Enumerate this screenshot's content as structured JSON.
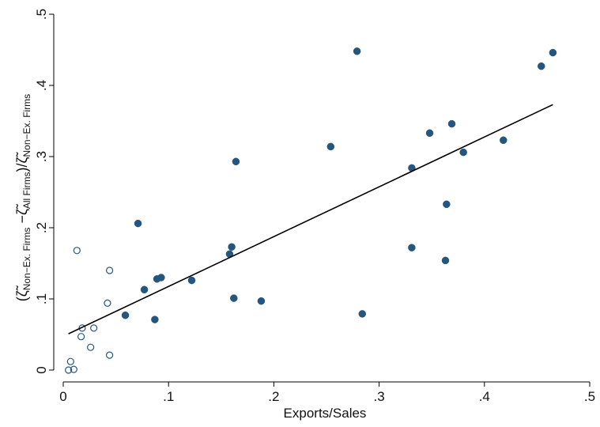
{
  "chart_data": {
    "type": "scatter",
    "xlabel": "Exports/Sales",
    "ylabel": [
      {
        "text": "(ζ̃",
        "sub": false
      },
      {
        "text": "Non−Ex. Firms",
        "sub": true
      },
      {
        "text": " −ζ̃",
        "sub": false
      },
      {
        "text": "All Firms",
        "sub": true
      },
      {
        "text": ")/ζ̃",
        "sub": false
      },
      {
        "text": "Non−Ex. Firms",
        "sub": true
      }
    ],
    "xlim": [
      0,
      0.5
    ],
    "ylim": [
      0,
      0.5
    ],
    "xticks": [
      0,
      {
        "value": 0.1,
        "label": ".1"
      },
      {
        "value": 0.2,
        "label": ".2"
      },
      {
        "value": 0.3,
        "label": ".3"
      },
      {
        "value": 0.4,
        "label": ".4"
      },
      {
        "value": 0.5,
        "label": ".5"
      }
    ],
    "yticks": [
      0,
      {
        "value": 0.1,
        "label": ".1"
      },
      {
        "value": 0.2,
        "label": ".2"
      },
      {
        "value": 0.3,
        "label": ".3"
      },
      {
        "value": 0.4,
        "label": ".4"
      },
      {
        "value": 0.5,
        "label": ".5"
      }
    ],
    "grid": false,
    "series": [
      {
        "color": "#24567e",
        "filled": true,
        "x": [
          0.071,
          0.279,
          0.465,
          0.454,
          0.348,
          0.369,
          0.254,
          0.164,
          0.331,
          0.38,
          0.418,
          0.364,
          0.331,
          0.363,
          0.16,
          0.158,
          0.122,
          0.093,
          0.089,
          0.077,
          0.059,
          0.087,
          0.162,
          0.188,
          0.284
        ],
        "values": [
          0.206,
          0.448,
          0.446,
          0.427,
          0.333,
          0.346,
          0.314,
          0.293,
          0.284,
          0.306,
          0.323,
          0.233,
          0.172,
          0.154,
          0.173,
          0.163,
          0.126,
          0.13,
          0.128,
          0.113,
          0.077,
          0.071,
          0.101,
          0.097,
          0.079
        ]
      },
      {
        "color": "#24567e",
        "filled": false,
        "x": [
          0.013,
          0.044,
          0.042,
          0.018,
          0.029,
          0.017,
          0.026,
          0.044,
          0.007,
          0.005,
          0.01
        ],
        "values": [
          0.168,
          0.14,
          0.094,
          0.059,
          0.059,
          0.047,
          0.032,
          0.021,
          0.012,
          0.0,
          0.001
        ]
      }
    ],
    "fit_line": {
      "color": "#000000",
      "x": [
        0.005,
        0.465
      ],
      "values": [
        0.051,
        0.373
      ]
    }
  }
}
